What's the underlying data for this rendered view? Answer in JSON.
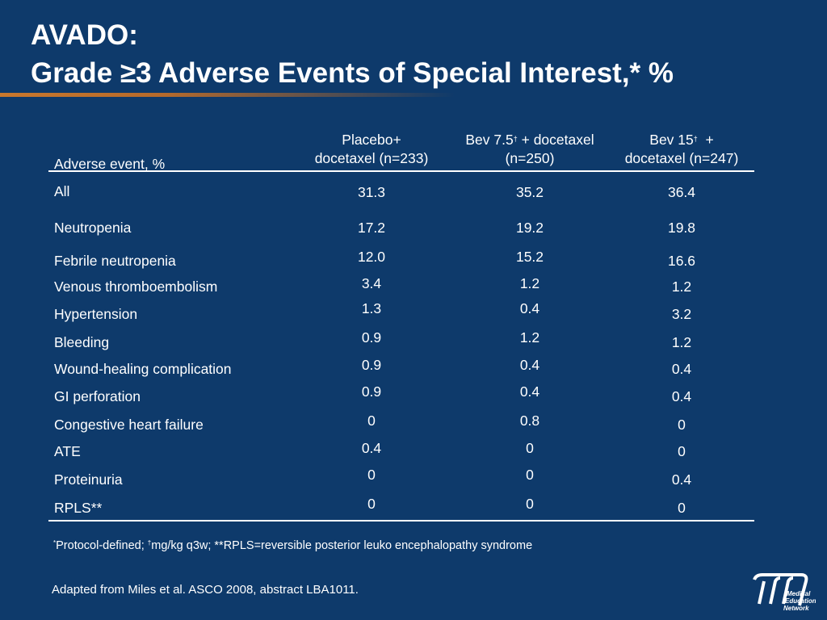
{
  "title": {
    "line1": "AVADO:",
    "line2": "Grade ≥3 Adverse Events of Special Interest,* %"
  },
  "table": {
    "row_header": "Adverse event, %",
    "columns": [
      {
        "line1": "Placebo+",
        "line2": "docetaxel (n=233)"
      },
      {
        "line1a": "Bev 7.5",
        "sup": "†",
        "line1b": " + docetaxel",
        "line2": "(n=250)"
      },
      {
        "line1a": "Bev 15",
        "sup": "†",
        "line1b": "  +",
        "line2": "docetaxel (n=247)"
      }
    ],
    "rows": [
      {
        "label": "All",
        "values": [
          "31.3",
          "35.2",
          "36.4"
        ]
      },
      {
        "label": "Neutropenia",
        "values": [
          "17.2",
          "19.2",
          "19.8"
        ]
      },
      {
        "label": "Febrile neutropenia",
        "values": [
          "12.0",
          "15.2",
          "16.6"
        ]
      },
      {
        "label": "Venous thromboembolism",
        "values": [
          "3.4",
          "1.2",
          "1.2"
        ]
      },
      {
        "label": "Hypertension",
        "values": [
          "1.3",
          "0.4",
          "3.2"
        ]
      },
      {
        "label": "Bleeding",
        "values": [
          "0.9",
          "1.2",
          "1.2"
        ]
      },
      {
        "label": "Wound-healing complication",
        "values": [
          "0.9",
          "0.4",
          "0.4"
        ]
      },
      {
        "label": "GI perforation",
        "values": [
          "0.9",
          "0.4",
          "0.4"
        ]
      },
      {
        "label": "Congestive heart failure",
        "values": [
          "0",
          "0.8",
          "0"
        ]
      },
      {
        "label": "ATE",
        "values": [
          "0.4",
          "0",
          "0"
        ]
      },
      {
        "label": "Proteinuria",
        "values": [
          "0",
          "0",
          "0.4"
        ]
      },
      {
        "label": "RPLS**",
        "values": [
          "0",
          "0",
          "0"
        ]
      }
    ]
  },
  "footnote": {
    "sup1": "*",
    "text1": "Protocol-defined; ",
    "sup2": "†",
    "text2": "mg/kg q3w; **RPLS=reversible posterior leuko encephalopathy syndrome"
  },
  "source": "Adapted from Miles et al. ASCO 2008, abstract LBA1011.",
  "logo": {
    "line1": "Medical",
    "line2": "Education",
    "line3": "Network"
  },
  "colors": {
    "background": "#0e3a6b",
    "accent_rule": "#c9782d",
    "text": "#ffffff"
  }
}
